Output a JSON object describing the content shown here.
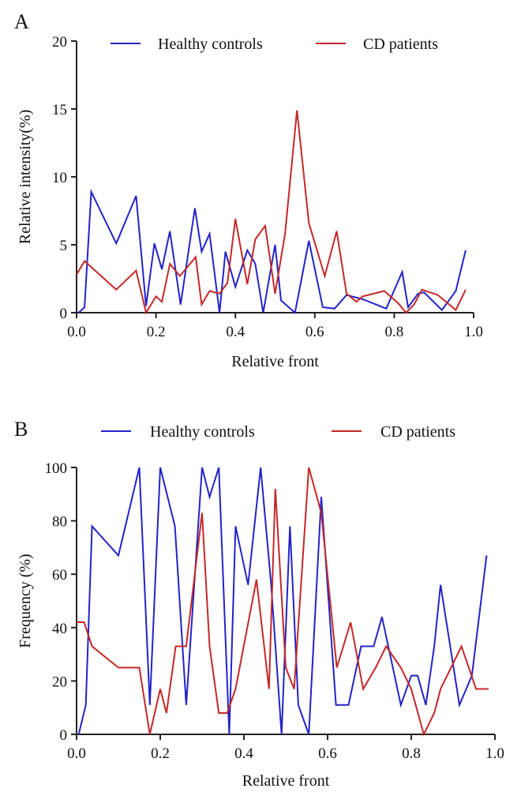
{
  "chart_data": [
    {
      "panel_label": "A",
      "type": "line",
      "xlabel": "Relative front",
      "ylabel": "Relative intensity(%)",
      "xlim": [
        0,
        1.0
      ],
      "ylim": [
        0,
        20
      ],
      "xticks": [
        "0.0",
        "0.2",
        "0.4",
        "0.6",
        "0.8",
        "1.0"
      ],
      "yticks": [
        "0",
        "5",
        "10",
        "15",
        "20"
      ],
      "legend_position": "top",
      "grid": false,
      "series": [
        {
          "name": "Healthy controls",
          "color": "#2323c8",
          "x": [
            0.005,
            0.02,
            0.037,
            0.1,
            0.15,
            0.175,
            0.196,
            0.215,
            0.235,
            0.262,
            0.298,
            0.315,
            0.335,
            0.36,
            0.375,
            0.4,
            0.43,
            0.45,
            0.47,
            0.5,
            0.515,
            0.55,
            0.585,
            0.62,
            0.65,
            0.68,
            0.72,
            0.78,
            0.82,
            0.835,
            0.86,
            0.875,
            0.92,
            0.955,
            0.98
          ],
          "y": [
            0,
            0.4,
            8.9,
            5.1,
            8.6,
            0.5,
            5.1,
            3.2,
            6.0,
            0.6,
            7.7,
            4.5,
            5.8,
            0,
            4.5,
            1.9,
            4.6,
            3.6,
            0,
            5.0,
            0.9,
            0,
            5.3,
            0.4,
            0.3,
            1.3,
            1.0,
            0.3,
            3.0,
            0.4,
            1.4,
            1.5,
            0.2,
            1.6,
            4.6
          ]
        },
        {
          "name": "CD patients",
          "color": "#c42828",
          "x": [
            0.0,
            0.02,
            0.1,
            0.15,
            0.175,
            0.2,
            0.215,
            0.235,
            0.26,
            0.3,
            0.315,
            0.335,
            0.36,
            0.38,
            0.4,
            0.43,
            0.45,
            0.475,
            0.5,
            0.525,
            0.555,
            0.585,
            0.625,
            0.655,
            0.68,
            0.705,
            0.72,
            0.775,
            0.81,
            0.83,
            0.85,
            0.87,
            0.91,
            0.955,
            0.98
          ],
          "y": [
            2.8,
            3.8,
            1.7,
            3.1,
            0,
            1.2,
            0.8,
            3.6,
            2.7,
            4.1,
            0.6,
            1.6,
            1.4,
            2.2,
            6.9,
            2.1,
            5.4,
            6.4,
            1.4,
            5.8,
            14.9,
            6.6,
            2.7,
            6.0,
            1.4,
            0.8,
            1.2,
            1.6,
            0.7,
            0,
            0.6,
            1.7,
            1.3,
            0.2,
            1.7
          ]
        }
      ]
    },
    {
      "panel_label": "B",
      "type": "line",
      "xlabel": "Relative front",
      "ylabel": "Frequency (%)",
      "xlim": [
        0,
        1.0
      ],
      "ylim": [
        0,
        100
      ],
      "xticks": [
        "0.0",
        "0.2",
        "0.4",
        "0.6",
        "0.8",
        "1.0"
      ],
      "yticks": [
        "0",
        "20",
        "40",
        "60",
        "80",
        "100"
      ],
      "legend_position": "top",
      "grid": false,
      "series": [
        {
          "name": "Healthy controls",
          "color": "#2323c8",
          "x": [
            0.005,
            0.022,
            0.037,
            0.1,
            0.15,
            0.175,
            0.2,
            0.235,
            0.262,
            0.3,
            0.318,
            0.34,
            0.365,
            0.38,
            0.41,
            0.44,
            0.465,
            0.49,
            0.51,
            0.53,
            0.555,
            0.585,
            0.62,
            0.65,
            0.68,
            0.71,
            0.73,
            0.775,
            0.8,
            0.815,
            0.835,
            0.855,
            0.87,
            0.915,
            0.945,
            0.98
          ],
          "y": [
            0,
            11,
            78,
            67,
            100,
            11,
            100,
            78,
            11,
            100,
            89,
            100,
            0,
            78,
            56,
            100,
            56,
            0,
            78,
            11,
            0,
            89,
            11,
            11,
            33,
            33,
            44,
            11,
            22,
            22,
            11,
            33,
            56,
            11,
            22,
            67
          ]
        },
        {
          "name": "CD patients",
          "color": "#c42828",
          "x": [
            0.0,
            0.018,
            0.037,
            0.1,
            0.15,
            0.175,
            0.2,
            0.215,
            0.237,
            0.262,
            0.3,
            0.318,
            0.34,
            0.36,
            0.38,
            0.43,
            0.46,
            0.475,
            0.5,
            0.52,
            0.555,
            0.585,
            0.622,
            0.655,
            0.685,
            0.715,
            0.74,
            0.775,
            0.8,
            0.83,
            0.855,
            0.87,
            0.92,
            0.955,
            0.985
          ],
          "y": [
            42,
            42,
            33,
            25,
            25,
            0,
            17,
            8,
            33,
            33,
            83,
            33,
            8,
            8,
            17,
            58,
            17,
            92,
            25,
            17,
            100,
            83,
            25,
            42,
            17,
            25,
            33,
            25,
            17,
            0,
            8,
            17,
            33,
            17,
            17
          ]
        }
      ]
    }
  ]
}
